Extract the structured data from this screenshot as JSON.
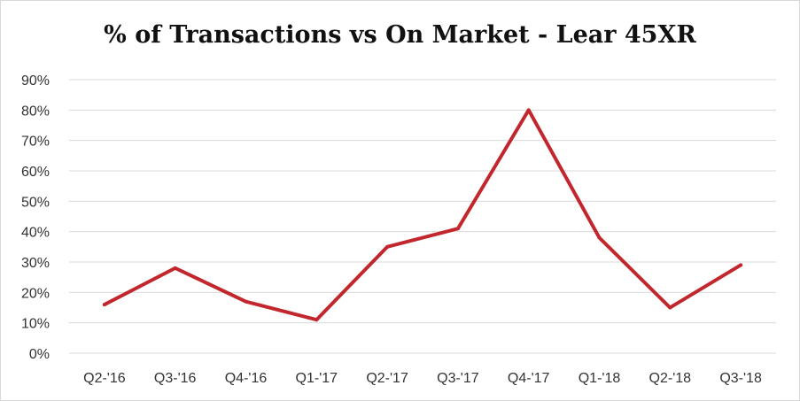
{
  "chart_data": {
    "type": "line",
    "title": "% of Transactions vs On Market - Lear 45XR",
    "xlabel": "",
    "ylabel": "",
    "categories": [
      "Q2-'16",
      "Q3-'16",
      "Q4-'16",
      "Q1-'17",
      "Q2-'17",
      "Q3-'17",
      "Q4-'17",
      "Q1-'18",
      "Q2-'18",
      "Q3-'18"
    ],
    "series": [
      {
        "values": [
          16,
          28,
          17,
          11,
          35,
          41,
          80,
          38,
          15,
          29
        ],
        "color": "#c1272d"
      }
    ],
    "ylim": [
      0,
      90
    ],
    "yticks": [
      0,
      10,
      20,
      30,
      40,
      50,
      60,
      70,
      80,
      90
    ],
    "ytick_labels": [
      "0%",
      "10%",
      "20%",
      "30%",
      "40%",
      "50%",
      "60%",
      "70%",
      "80%",
      "90%"
    ],
    "grid": true,
    "legend": "none"
  }
}
